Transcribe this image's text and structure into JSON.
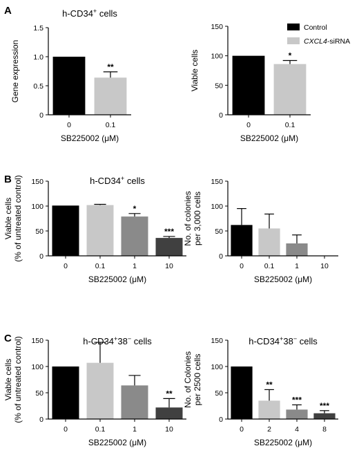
{
  "chart_data": [
    {
      "type": "bar",
      "panel": "A",
      "title": "h-CD34+ cells",
      "xlabel": "SB225002 (μM)",
      "ylabel": "Gene expression",
      "ylim": [
        0,
        1.5
      ],
      "yticks": [
        "0",
        "0.5",
        "1.0",
        "1.5"
      ],
      "categories": [
        "0",
        "0.1"
      ],
      "values": [
        1.0,
        0.64
      ],
      "errors": [
        0,
        0.1
      ],
      "significance": [
        "",
        "**"
      ],
      "colors": [
        "#000000",
        "#c8c8c8"
      ]
    },
    {
      "type": "bar",
      "panel": "",
      "title": "",
      "xlabel": "SB225002 (μM)",
      "ylabel": "Viable cells",
      "ylim": [
        0,
        150
      ],
      "yticks": [
        "0",
        "50",
        "100",
        "150"
      ],
      "categories": [
        "0",
        "0.1"
      ],
      "values": [
        100,
        86
      ],
      "errors": [
        0,
        6
      ],
      "significance": [
        "",
        "*"
      ],
      "colors": [
        "#000000",
        "#c8c8c8"
      ],
      "legend": {
        "placement": "top-right",
        "entries": [
          {
            "name": "Control",
            "color": "#000000"
          },
          {
            "name": "CXCL4",
            "suffix": "-siRNA",
            "color": "#c8c8c8"
          }
        ]
      }
    },
    {
      "type": "bar",
      "panel": "B",
      "title": "h-CD34+ cells",
      "xlabel": "SB225002 (μM)",
      "ylabel": "Viable cells",
      "ylabel2": "(% of untreated control)",
      "ylim": [
        0,
        150
      ],
      "yticks": [
        "0",
        "50",
        "100",
        "150"
      ],
      "categories": [
        "0",
        "0.1",
        "1",
        "10"
      ],
      "values": [
        101,
        102,
        79,
        36
      ],
      "errors": [
        0,
        1.5,
        6,
        3
      ],
      "significance": [
        "",
        "",
        "*",
        "***"
      ],
      "colors": [
        "#000000",
        "#c8c8c8",
        "#8a8a8a",
        "#404040"
      ]
    },
    {
      "type": "bar",
      "panel": "",
      "title": "",
      "xlabel": "SB225002 (μM)",
      "ylabel": "No. of colonies",
      "ylabel2": "per 3,000 cells",
      "ylim": [
        0,
        150
      ],
      "yticks": [
        "0",
        "50",
        "100",
        "150"
      ],
      "categories": [
        "0",
        "0.1",
        "1",
        "10"
      ],
      "values": [
        62,
        55,
        25,
        0
      ],
      "errors": [
        33,
        29,
        17,
        0
      ],
      "significance": [
        "",
        "",
        "",
        ""
      ],
      "colors": [
        "#000000",
        "#c8c8c8",
        "#8a8a8a",
        "#404040"
      ]
    },
    {
      "type": "bar",
      "panel": "C",
      "title": "h-CD34+38− cells",
      "xlabel": "SB225002 (μM)",
      "ylabel": "Viable cells",
      "ylabel2": "(% of untreated control)",
      "ylim": [
        0,
        150
      ],
      "yticks": [
        "0",
        "50",
        "100",
        "150"
      ],
      "categories": [
        "0",
        "0.1",
        "1",
        "10"
      ],
      "values": [
        100,
        107,
        64,
        22
      ],
      "errors": [
        0,
        39,
        19,
        17
      ],
      "significance": [
        "",
        "",
        "",
        "**"
      ],
      "colors": [
        "#000000",
        "#c8c8c8",
        "#8a8a8a",
        "#404040"
      ]
    },
    {
      "type": "bar",
      "panel": "",
      "title": "h-CD34+38− cells",
      "xlabel": "SB225002 (μM)",
      "ylabel": "No. of Colonies",
      "ylabel2": "per 2500 cells",
      "ylim": [
        0,
        150
      ],
      "yticks": [
        "0",
        "50",
        "100",
        "150"
      ],
      "categories": [
        "0",
        "2",
        "4",
        "8"
      ],
      "values": [
        100,
        35,
        18,
        11
      ],
      "errors": [
        0,
        21,
        9,
        5
      ],
      "significance": [
        "",
        "**",
        "***",
        "***"
      ],
      "colors": [
        "#000000",
        "#c8c8c8",
        "#8a8a8a",
        "#404040"
      ]
    }
  ]
}
